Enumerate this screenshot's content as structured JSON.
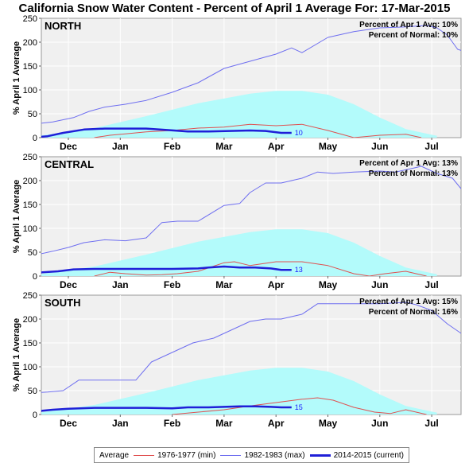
{
  "title": "California Snow Water Content - Percent of April 1 Average For: 17-Mar-2015",
  "colors": {
    "average_fill": "#b3fbfb",
    "min_line": "#e05050",
    "max_line": "#6e6ef0",
    "current_line": "#1f1fd8",
    "plot_bg": "#f0f0f0",
    "grid": "#ffffff"
  },
  "legend": {
    "items": [
      {
        "label": "Average",
        "key": "average"
      },
      {
        "label": "1976-1977 (min)",
        "key": "min"
      },
      {
        "label": "1982-1983 (max)",
        "key": "max"
      },
      {
        "label": "2014-2015 (current)",
        "key": "current"
      }
    ]
  },
  "chart_data": [
    {
      "type": "area",
      "region": "NORTH",
      "ylabel": "% April 1 Average",
      "ylim": [
        0,
        250
      ],
      "yticks": [
        0,
        50,
        100,
        150,
        200,
        250
      ],
      "months": [
        "Dec",
        "Jan",
        "Feb",
        "Mar",
        "Apr",
        "May",
        "Jun",
        "Jul"
      ],
      "x_unit": "month index from Nov 1",
      "xlim": [
        0.6,
        8.6
      ],
      "percent_of_apr1_label": "Percent of Apr 1 Avg: 10%",
      "percent_of_normal_label": "Percent of Normal: 10%",
      "current_end_label": "10",
      "series": {
        "average": [
          [
            0.6,
            2
          ],
          [
            1.0,
            5
          ],
          [
            2.0,
            20
          ],
          [
            3.0,
            45
          ],
          [
            4.0,
            72
          ],
          [
            5.0,
            92
          ],
          [
            5.5,
            98
          ],
          [
            6.0,
            98
          ],
          [
            6.5,
            90
          ],
          [
            7.0,
            70
          ],
          [
            7.5,
            42
          ],
          [
            8.0,
            18
          ],
          [
            8.5,
            6
          ],
          [
            8.6,
            4
          ]
        ],
        "min": [
          [
            2.0,
            0
          ],
          [
            2.3,
            5
          ],
          [
            2.6,
            8
          ],
          [
            3.0,
            12
          ],
          [
            3.5,
            15
          ],
          [
            4.0,
            20
          ],
          [
            4.5,
            22
          ],
          [
            5.0,
            28
          ],
          [
            5.5,
            25
          ],
          [
            6.0,
            28
          ],
          [
            6.5,
            15
          ],
          [
            7.0,
            0
          ],
          [
            7.5,
            5
          ],
          [
            8.0,
            7
          ],
          [
            8.3,
            0
          ]
        ],
        "max": [
          [
            0.6,
            20
          ],
          [
            0.8,
            28
          ],
          [
            1.2,
            33
          ],
          [
            1.6,
            42
          ],
          [
            1.9,
            55
          ],
          [
            2.2,
            64
          ],
          [
            2.6,
            70
          ],
          [
            3.0,
            78
          ],
          [
            3.5,
            95
          ],
          [
            4.0,
            115
          ],
          [
            4.5,
            145
          ],
          [
            5.0,
            160
          ],
          [
            5.5,
            175
          ],
          [
            5.8,
            188
          ],
          [
            6.0,
            178
          ],
          [
            6.5,
            210
          ],
          [
            7.0,
            222
          ],
          [
            7.5,
            230
          ],
          [
            8.0,
            232
          ],
          [
            8.4,
            235
          ],
          [
            8.6,
            230
          ],
          [
            8.8,
            215
          ],
          [
            9.0,
            185
          ],
          [
            9.2,
            178
          ],
          [
            9.5,
            165
          ],
          [
            9.8,
            100
          ],
          [
            10.0,
            70
          ],
          [
            10.3,
            50
          ],
          [
            10.6,
            30
          ],
          [
            11.0,
            15
          ],
          [
            11.3,
            5
          ],
          [
            11.5,
            0
          ]
        ],
        "current": [
          [
            0.6,
            1
          ],
          [
            0.9,
            1
          ],
          [
            1.1,
            3
          ],
          [
            1.4,
            10
          ],
          [
            1.8,
            17
          ],
          [
            2.2,
            19
          ],
          [
            2.6,
            19
          ],
          [
            3.0,
            19
          ],
          [
            3.4,
            16
          ],
          [
            3.8,
            13
          ],
          [
            4.2,
            13
          ],
          [
            4.6,
            14
          ],
          [
            5.0,
            15
          ],
          [
            5.3,
            14
          ],
          [
            5.6,
            10
          ],
          [
            5.8,
            10
          ]
        ]
      }
    },
    {
      "type": "area",
      "region": "CENTRAL",
      "ylabel": "% April 1 Average",
      "ylim": [
        0,
        250
      ],
      "yticks": [
        0,
        50,
        100,
        150,
        200,
        250
      ],
      "months": [
        "Dec",
        "Jan",
        "Feb",
        "Mar",
        "Apr",
        "May",
        "Jun",
        "Jul"
      ],
      "x_unit": "month index from Nov 1",
      "xlim": [
        0.6,
        8.6
      ],
      "percent_of_apr1_label": "Percent of Apr 1 Avg: 13%",
      "percent_of_normal_label": "Percent of Normal: 13%",
      "current_end_label": "13",
      "series": {
        "average": [
          [
            0.6,
            2
          ],
          [
            1.0,
            5
          ],
          [
            2.0,
            20
          ],
          [
            3.0,
            45
          ],
          [
            4.0,
            72
          ],
          [
            5.0,
            92
          ],
          [
            5.5,
            98
          ],
          [
            6.0,
            98
          ],
          [
            6.5,
            90
          ],
          [
            7.0,
            70
          ],
          [
            7.5,
            42
          ],
          [
            8.0,
            18
          ],
          [
            8.5,
            6
          ],
          [
            8.6,
            4
          ]
        ],
        "min": [
          [
            2.0,
            0
          ],
          [
            2.3,
            8
          ],
          [
            2.6,
            5
          ],
          [
            3.0,
            2
          ],
          [
            3.3,
            3
          ],
          [
            3.6,
            5
          ],
          [
            4.0,
            10
          ],
          [
            4.5,
            28
          ],
          [
            4.7,
            30
          ],
          [
            5.0,
            22
          ],
          [
            5.5,
            30
          ],
          [
            6.0,
            30
          ],
          [
            6.5,
            22
          ],
          [
            7.0,
            5
          ],
          [
            7.3,
            0
          ],
          [
            7.6,
            5
          ],
          [
            8.0,
            10
          ],
          [
            8.4,
            0
          ]
        ],
        "max": [
          [
            0.6,
            27
          ],
          [
            0.9,
            45
          ],
          [
            1.2,
            52
          ],
          [
            1.5,
            60
          ],
          [
            1.8,
            70
          ],
          [
            2.2,
            76
          ],
          [
            2.6,
            74
          ],
          [
            3.0,
            80
          ],
          [
            3.3,
            112
          ],
          [
            3.6,
            115
          ],
          [
            4.0,
            115
          ],
          [
            4.5,
            148
          ],
          [
            4.8,
            152
          ],
          [
            5.0,
            175
          ],
          [
            5.3,
            195
          ],
          [
            5.6,
            195
          ],
          [
            6.0,
            205
          ],
          [
            6.3,
            218
          ],
          [
            6.6,
            215
          ],
          [
            7.0,
            218
          ],
          [
            7.5,
            220
          ],
          [
            7.8,
            218
          ],
          [
            8.1,
            225
          ],
          [
            8.3,
            230
          ],
          [
            8.6,
            215
          ],
          [
            8.9,
            205
          ],
          [
            9.2,
            165
          ],
          [
            9.5,
            125
          ],
          [
            9.8,
            100
          ],
          [
            10.1,
            75
          ],
          [
            10.4,
            55
          ],
          [
            10.7,
            30
          ],
          [
            11.0,
            15
          ],
          [
            11.3,
            0
          ]
        ],
        "current": [
          [
            0.6,
            3
          ],
          [
            0.8,
            3
          ],
          [
            1.0,
            8
          ],
          [
            1.3,
            10
          ],
          [
            1.6,
            14
          ],
          [
            2.0,
            15
          ],
          [
            2.5,
            15
          ],
          [
            3.0,
            15
          ],
          [
            3.5,
            15
          ],
          [
            4.0,
            16
          ],
          [
            4.2,
            18
          ],
          [
            4.5,
            20
          ],
          [
            4.8,
            18
          ],
          [
            5.1,
            18
          ],
          [
            5.4,
            16
          ],
          [
            5.6,
            13
          ],
          [
            5.8,
            13
          ]
        ]
      }
    },
    {
      "type": "area",
      "region": "SOUTH",
      "ylabel": "% April 1 Average",
      "ylim": [
        0,
        250
      ],
      "yticks": [
        0,
        50,
        100,
        150,
        200,
        250
      ],
      "months": [
        "Dec",
        "Jan",
        "Feb",
        "Mar",
        "Apr",
        "May",
        "Jun",
        "Jul"
      ],
      "x_unit": "month index from Nov 1",
      "xlim": [
        0.6,
        8.6
      ],
      "percent_of_apr1_label": "Percent of Apr 1 Avg: 15%",
      "percent_of_normal_label": "Percent of Normal: 16%",
      "current_end_label": "15",
      "series": {
        "average": [
          [
            0.6,
            2
          ],
          [
            1.0,
            5
          ],
          [
            2.0,
            20
          ],
          [
            3.0,
            45
          ],
          [
            4.0,
            72
          ],
          [
            5.0,
            92
          ],
          [
            5.5,
            98
          ],
          [
            6.0,
            98
          ],
          [
            6.5,
            90
          ],
          [
            7.0,
            70
          ],
          [
            7.5,
            42
          ],
          [
            8.0,
            18
          ],
          [
            8.5,
            6
          ],
          [
            8.6,
            4
          ]
        ],
        "min": [
          [
            3.5,
            0
          ],
          [
            4.0,
            5
          ],
          [
            4.5,
            10
          ],
          [
            5.0,
            18
          ],
          [
            5.5,
            25
          ],
          [
            6.0,
            32
          ],
          [
            6.3,
            35
          ],
          [
            6.6,
            30
          ],
          [
            7.0,
            15
          ],
          [
            7.4,
            5
          ],
          [
            7.7,
            2
          ],
          [
            8.0,
            10
          ],
          [
            8.4,
            0
          ]
        ],
        "max": [
          [
            0.6,
            10
          ],
          [
            0.8,
            45
          ],
          [
            1.1,
            47
          ],
          [
            1.4,
            50
          ],
          [
            1.7,
            72
          ],
          [
            2.0,
            72
          ],
          [
            2.4,
            72
          ],
          [
            2.8,
            72
          ],
          [
            3.1,
            110
          ],
          [
            3.5,
            130
          ],
          [
            3.9,
            150
          ],
          [
            4.3,
            160
          ],
          [
            4.6,
            175
          ],
          [
            5.0,
            195
          ],
          [
            5.3,
            200
          ],
          [
            5.6,
            200
          ],
          [
            6.0,
            210
          ],
          [
            6.3,
            232
          ],
          [
            6.6,
            232
          ],
          [
            7.0,
            232
          ],
          [
            7.5,
            232
          ],
          [
            8.0,
            235
          ],
          [
            8.2,
            230
          ],
          [
            8.5,
            218
          ],
          [
            8.8,
            190
          ],
          [
            9.2,
            160
          ],
          [
            9.6,
            120
          ],
          [
            10.0,
            80
          ],
          [
            10.3,
            45
          ],
          [
            10.6,
            25
          ],
          [
            11.0,
            0
          ]
        ],
        "current": [
          [
            0.6,
            3
          ],
          [
            0.8,
            3
          ],
          [
            1.0,
            8
          ],
          [
            1.2,
            10
          ],
          [
            1.5,
            12
          ],
          [
            2.0,
            14
          ],
          [
            2.5,
            14
          ],
          [
            3.0,
            14
          ],
          [
            3.5,
            13
          ],
          [
            3.8,
            15
          ],
          [
            4.2,
            15
          ],
          [
            4.5,
            16
          ],
          [
            4.8,
            17
          ],
          [
            5.1,
            17
          ],
          [
            5.4,
            16
          ],
          [
            5.6,
            15
          ],
          [
            5.8,
            15
          ]
        ]
      }
    }
  ]
}
